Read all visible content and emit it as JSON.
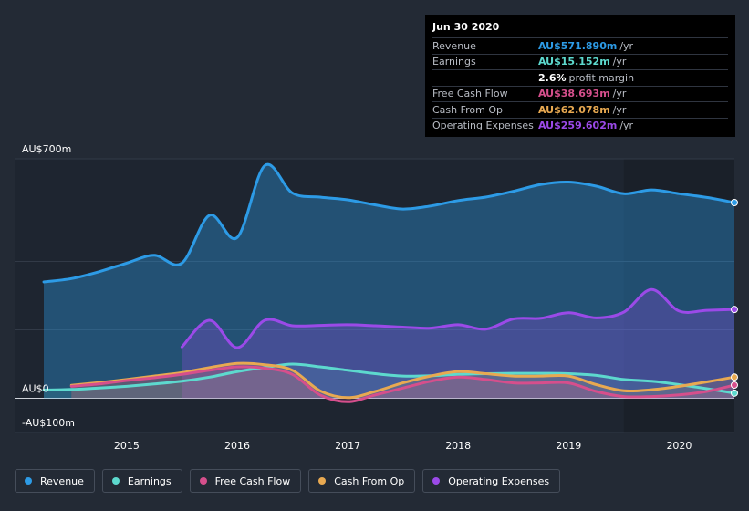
{
  "chart_data": {
    "type": "area",
    "title": "",
    "xlabel": "",
    "ylabel": "",
    "ylim": [
      -100,
      700
    ],
    "y_tick_labels": [
      {
        "value": 700,
        "label": "AU$700m"
      },
      {
        "value": 0,
        "label": "AU$0"
      },
      {
        "value": -100,
        "label": "-AU$100m"
      }
    ],
    "gridlines": [
      600,
      400,
      200,
      0
    ],
    "xlim": [
      2014.25,
      2020.5
    ],
    "x_ticks": [
      {
        "value": 2015,
        "label": "2015"
      },
      {
        "value": 2016,
        "label": "2016"
      },
      {
        "value": 2017,
        "label": "2017"
      },
      {
        "value": 2018,
        "label": "2018"
      },
      {
        "value": 2019,
        "label": "2019"
      },
      {
        "value": 2020,
        "label": "2020"
      }
    ],
    "forecast_shade_start": 2019.5,
    "series": [
      {
        "name": "Revenue",
        "color": "#2d9be6",
        "x": [
          2014.25,
          2014.5,
          2014.75,
          2015.0,
          2015.25,
          2015.5,
          2015.75,
          2016.0,
          2016.25,
          2016.5,
          2016.75,
          2017.0,
          2017.25,
          2017.5,
          2017.75,
          2018.0,
          2018.25,
          2018.5,
          2018.75,
          2019.0,
          2019.25,
          2019.5,
          2019.75,
          2020.0,
          2020.25,
          2020.5
        ],
        "values": [
          340,
          350,
          370,
          395,
          418,
          395,
          535,
          470,
          680,
          600,
          588,
          580,
          565,
          553,
          562,
          578,
          588,
          605,
          625,
          632,
          620,
          598,
          609,
          598,
          587,
          572
        ]
      },
      {
        "name": "Earnings",
        "color": "#5dd9ce",
        "x": [
          2014.25,
          2014.5,
          2014.75,
          2015.0,
          2015.25,
          2015.5,
          2015.75,
          2016.0,
          2016.25,
          2016.5,
          2016.75,
          2017.0,
          2017.25,
          2017.5,
          2017.75,
          2018.0,
          2018.25,
          2018.5,
          2018.75,
          2019.0,
          2019.25,
          2019.5,
          2019.75,
          2020.0,
          2020.25,
          2020.5
        ],
        "values": [
          24,
          26,
          30,
          35,
          42,
          50,
          62,
          78,
          90,
          100,
          92,
          82,
          72,
          65,
          66,
          70,
          72,
          73,
          73,
          72,
          67,
          55,
          50,
          40,
          28,
          15.152
        ]
      },
      {
        "name": "Free Cash Flow",
        "color": "#d64f8c",
        "x": [
          2014.5,
          2014.75,
          2015.0,
          2015.25,
          2015.5,
          2015.75,
          2016.0,
          2016.25,
          2016.5,
          2016.75,
          2017.0,
          2017.25,
          2017.5,
          2017.75,
          2018.0,
          2018.25,
          2018.5,
          2018.75,
          2019.0,
          2019.25,
          2019.5,
          2019.75,
          2020.0,
          2020.25,
          2020.5
        ],
        "values": [
          35,
          42,
          52,
          60,
          70,
          82,
          92,
          88,
          70,
          10,
          -10,
          10,
          30,
          50,
          62,
          55,
          45,
          45,
          45,
          20,
          5,
          5,
          10,
          20,
          38.693
        ]
      },
      {
        "name": "Cash From Op",
        "color": "#e8a951",
        "x": [
          2014.5,
          2014.75,
          2015.0,
          2015.25,
          2015.5,
          2015.75,
          2016.0,
          2016.25,
          2016.5,
          2016.75,
          2017.0,
          2017.25,
          2017.5,
          2017.75,
          2018.0,
          2018.25,
          2018.5,
          2018.75,
          2019.0,
          2019.25,
          2019.5,
          2019.75,
          2020.0,
          2020.25,
          2020.5
        ],
        "values": [
          38,
          46,
          55,
          65,
          75,
          90,
          102,
          98,
          82,
          22,
          2,
          20,
          45,
          65,
          78,
          72,
          65,
          65,
          65,
          40,
          22,
          25,
          35,
          48,
          62.078
        ]
      },
      {
        "name": "Operating Expenses",
        "color": "#9b4ae8",
        "x": [
          2015.5,
          2015.75,
          2016.0,
          2016.25,
          2016.5,
          2016.75,
          2017.0,
          2017.25,
          2017.5,
          2017.75,
          2018.0,
          2018.25,
          2018.5,
          2018.75,
          2019.0,
          2019.25,
          2019.5,
          2019.75,
          2020.0,
          2020.25,
          2020.5
        ],
        "values": [
          150,
          228,
          148,
          228,
          212,
          213,
          215,
          212,
          208,
          205,
          215,
          202,
          232,
          234,
          250,
          235,
          252,
          318,
          255,
          257,
          259.602
        ]
      }
    ]
  },
  "tooltip": {
    "date": "Jun 30 2020",
    "rows": [
      {
        "label": "Revenue",
        "value": "AU$571.890m",
        "unit": "/yr",
        "color": "#2d9be6"
      },
      {
        "label": "Earnings",
        "value": "AU$15.152m",
        "unit": "/yr",
        "color": "#5dd9ce"
      },
      {
        "label": "",
        "value": "2.6%",
        "unit": "profit margin",
        "color": "#ffffff"
      },
      {
        "label": "Free Cash Flow",
        "value": "AU$38.693m",
        "unit": "/yr",
        "color": "#d64f8c"
      },
      {
        "label": "Cash From Op",
        "value": "AU$62.078m",
        "unit": "/yr",
        "color": "#e8a951"
      },
      {
        "label": "Operating Expenses",
        "value": "AU$259.602m",
        "unit": "/yr",
        "color": "#9b4ae8"
      }
    ]
  },
  "legend": [
    {
      "label": "Revenue",
      "color": "#2d9be6"
    },
    {
      "label": "Earnings",
      "color": "#5dd9ce"
    },
    {
      "label": "Free Cash Flow",
      "color": "#d64f8c"
    },
    {
      "label": "Cash From Op",
      "color": "#e8a951"
    },
    {
      "label": "Operating Expenses",
      "color": "#9b4ae8"
    }
  ]
}
